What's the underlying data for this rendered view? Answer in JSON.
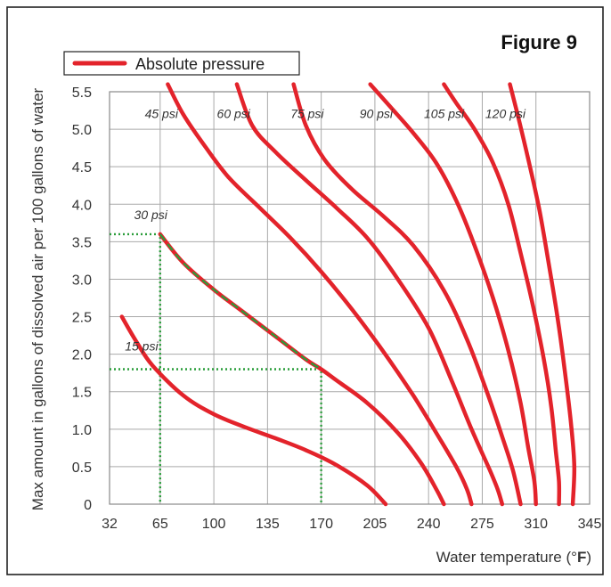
{
  "chart_data": {
    "type": "line",
    "title": "Figure 9",
    "legend": {
      "entry": "Absolute pressure",
      "position": "top-left",
      "color": "#e3232b"
    },
    "xlabel": {
      "prefix": "Water temperature (°",
      "bold": "F",
      "suffix": ")"
    },
    "ylabel": "Max amount in gallons of dissolved air per 100 gallons of water",
    "x_ticks": [
      "32",
      "65",
      "100",
      "135",
      "170",
      "205",
      "240",
      "275",
      "310",
      "345"
    ],
    "y_ticks": [
      "0",
      "0.5",
      "1.0",
      "1.5",
      "2.0",
      "2.5",
      "3.0",
      "3.5",
      "4.0",
      "4.5",
      "5.0",
      "5.5"
    ],
    "xlim": [
      32,
      345
    ],
    "ylim": [
      0,
      5.5
    ],
    "grid": true,
    "series": [
      {
        "name": "15 psi",
        "points": [
          [
            40,
            2.5
          ],
          [
            50,
            2.15
          ],
          [
            60,
            1.85
          ],
          [
            80,
            1.45
          ],
          [
            100,
            1.2
          ],
          [
            120,
            1.03
          ],
          [
            140,
            0.88
          ],
          [
            160,
            0.72
          ],
          [
            180,
            0.52
          ],
          [
            200,
            0.25
          ],
          [
            212,
            0
          ]
        ]
      },
      {
        "name": "30 psi",
        "points": [
          [
            65,
            3.6
          ],
          [
            80,
            3.22
          ],
          [
            100,
            2.86
          ],
          [
            120,
            2.55
          ],
          [
            140,
            2.24
          ],
          [
            160,
            1.93
          ],
          [
            170,
            1.8
          ],
          [
            180,
            1.65
          ],
          [
            200,
            1.35
          ],
          [
            220,
            0.95
          ],
          [
            235,
            0.55
          ],
          [
            245,
            0.2
          ],
          [
            250,
            0
          ]
        ]
      },
      {
        "name": "45 psi",
        "points": [
          [
            70,
            5.6
          ],
          [
            80,
            5.2
          ],
          [
            95,
            4.75
          ],
          [
            110,
            4.35
          ],
          [
            130,
            3.95
          ],
          [
            150,
            3.55
          ],
          [
            170,
            3.1
          ],
          [
            190,
            2.6
          ],
          [
            210,
            2.05
          ],
          [
            230,
            1.45
          ],
          [
            245,
            0.95
          ],
          [
            258,
            0.5
          ],
          [
            265,
            0.2
          ],
          [
            268,
            0
          ]
        ]
      },
      {
        "name": "60 psi",
        "points": [
          [
            115,
            5.6
          ],
          [
            125,
            5.05
          ],
          [
            140,
            4.7
          ],
          [
            160,
            4.32
          ],
          [
            180,
            3.95
          ],
          [
            200,
            3.55
          ],
          [
            220,
            3.0
          ],
          [
            240,
            2.35
          ],
          [
            255,
            1.65
          ],
          [
            268,
            1.0
          ],
          [
            280,
            0.45
          ],
          [
            285,
            0.2
          ],
          [
            288,
            0
          ]
        ]
      },
      {
        "name": "75 psi",
        "points": [
          [
            152,
            5.6
          ],
          [
            160,
            5.05
          ],
          [
            172,
            4.6
          ],
          [
            190,
            4.2
          ],
          [
            210,
            3.85
          ],
          [
            230,
            3.45
          ],
          [
            250,
            2.85
          ],
          [
            265,
            2.2
          ],
          [
            278,
            1.5
          ],
          [
            288,
            0.9
          ],
          [
            295,
            0.45
          ],
          [
            300,
            0
          ]
        ]
      },
      {
        "name": "90 psi",
        "points": [
          [
            202,
            5.6
          ],
          [
            215,
            5.3
          ],
          [
            230,
            4.95
          ],
          [
            245,
            4.55
          ],
          [
            258,
            4.05
          ],
          [
            270,
            3.45
          ],
          [
            282,
            2.75
          ],
          [
            292,
            2.05
          ],
          [
            300,
            1.35
          ],
          [
            305,
            0.75
          ],
          [
            309,
            0.3
          ],
          [
            310,
            0
          ]
        ]
      },
      {
        "name": "105 psi",
        "points": [
          [
            250,
            5.6
          ],
          [
            258,
            5.35
          ],
          [
            270,
            5.0
          ],
          [
            282,
            4.55
          ],
          [
            292,
            4.0
          ],
          [
            300,
            3.35
          ],
          [
            308,
            2.65
          ],
          [
            315,
            1.95
          ],
          [
            320,
            1.3
          ],
          [
            323,
            0.7
          ],
          [
            325,
            0.3
          ],
          [
            325,
            0
          ]
        ]
      },
      {
        "name": "120 psi",
        "points": [
          [
            293,
            5.6
          ],
          [
            298,
            5.2
          ],
          [
            305,
            4.6
          ],
          [
            312,
            3.95
          ],
          [
            318,
            3.25
          ],
          [
            324,
            2.5
          ],
          [
            329,
            1.75
          ],
          [
            333,
            1.05
          ],
          [
            335,
            0.5
          ],
          [
            334,
            0
          ]
        ]
      }
    ],
    "label_positions": {
      "15 psi": [
        42,
        2.05
      ],
      "30 psi": [
        48,
        3.8
      ],
      "45 psi": [
        55,
        5.15
      ],
      "60 psi": [
        102,
        5.15
      ],
      "75 psi": [
        150,
        5.15
      ],
      "90 psi": [
        195,
        5.15
      ],
      "105 psi": [
        237,
        5.15
      ],
      "120 psi": [
        277,
        5.15
      ]
    },
    "highlight": {
      "color": "#2a9d3a",
      "curve_segment": [
        [
          65,
          3.6
        ],
        [
          80,
          3.22
        ],
        [
          100,
          2.86
        ],
        [
          120,
          2.55
        ],
        [
          140,
          2.24
        ],
        [
          160,
          1.93
        ],
        [
          170,
          1.8
        ]
      ],
      "guides": [
        [
          [
            32,
            3.6
          ],
          [
            65,
            3.6
          ],
          [
            65,
            0
          ]
        ],
        [
          [
            32,
            1.8
          ],
          [
            170,
            1.8
          ],
          [
            170,
            0
          ]
        ]
      ]
    }
  }
}
